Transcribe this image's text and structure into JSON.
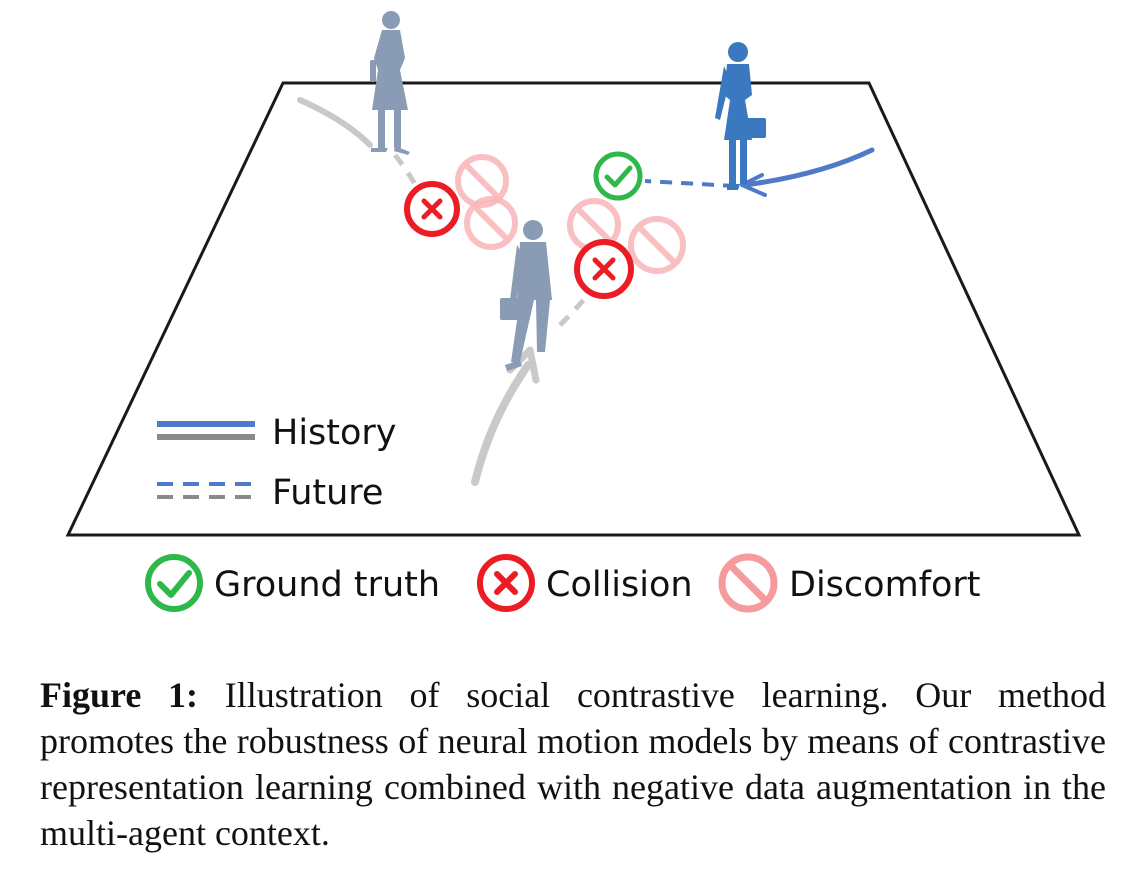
{
  "legend": {
    "history": "History",
    "future": "Future"
  },
  "outcomes": {
    "ground_truth": "Ground truth",
    "collision": "Collision",
    "discomfort": "Discomfort"
  },
  "caption": {
    "label": "Figure 1:",
    "text": "Illustration of social contrastive learning. Our method promotes the robustness of neural motion models by means of contrastive representation learning combined with negative data augmentation in the multi-agent context."
  },
  "colors": {
    "history_blue": "#4f79c9",
    "history_gray": "#8a8a8a",
    "ground_truth_green": "#2fb84a",
    "collision_red": "#ec1c24",
    "discomfort_pink": "#f6a7a9",
    "pedestrian_gray": "#8a9bb5",
    "pedestrian_blue": "#3a78c0"
  }
}
